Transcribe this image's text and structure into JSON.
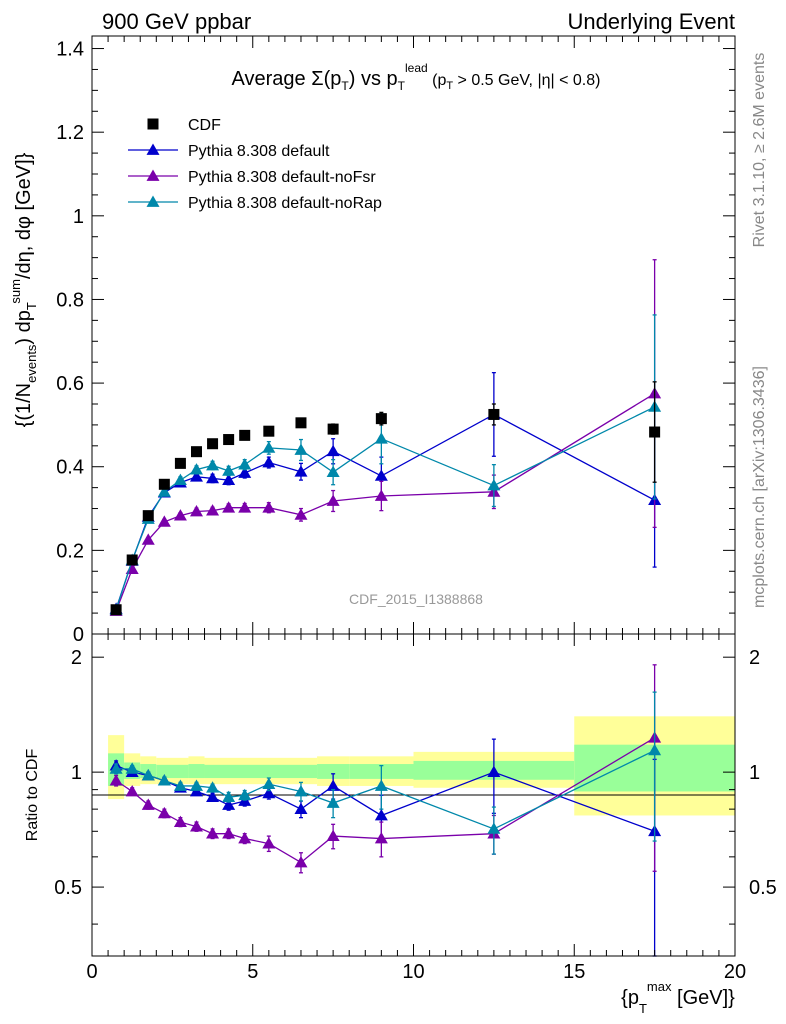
{
  "header": {
    "left": "900 GeV ppbar",
    "right": "Underlying Event"
  },
  "side_labels": {
    "rivet": "Rivet 3.1.10, ≥ 2.6M events",
    "mcplots": "mcplots.cern.ch [arXiv:1306.3436]"
  },
  "watermark": "CDF_2015_I1388868",
  "legend": {
    "items": [
      {
        "label": "CDF",
        "color": "#000000",
        "marker": "square"
      },
      {
        "label": "Pythia 8.308 default",
        "color": "#0000cc",
        "marker": "triangle"
      },
      {
        "label": "Pythia 8.308 default-noFsr",
        "color": "#7a00aa",
        "marker": "triangle"
      },
      {
        "label": "Pythia 8.308 default-noRap",
        "color": "#0088aa",
        "marker": "triangle"
      }
    ]
  },
  "colors": {
    "band_outer": "#ffff99",
    "band_inner": "#99ff99"
  },
  "chart_data": [
    {
      "type": "line",
      "title": "Average Σ(p_T) vs p_T^lead (p_T > 0.5 GeV, |η| < 0.8)",
      "ylabel": "{(1/N_events) dp_T^sum/dη, dφ [GeV]}",
      "xlim": [
        0,
        20
      ],
      "ylim": [
        0,
        1.43
      ],
      "yticks": [
        "0",
        "0.2",
        "0.4",
        "0.6",
        "0.8",
        "1",
        "1.2",
        "1.4"
      ],
      "x": [
        0.75,
        1.25,
        1.75,
        2.25,
        2.75,
        3.25,
        3.75,
        4.25,
        4.75,
        5.5,
        6.5,
        7.5,
        9.0,
        12.5,
        17.5
      ],
      "series": [
        {
          "name": "CDF",
          "values": [
            0.058,
            0.177,
            0.283,
            0.358,
            0.408,
            0.436,
            0.455,
            0.465,
            0.475,
            0.485,
            0.505,
            0.49,
            0.515,
            0.525,
            0.483
          ],
          "errors": [
            0.003,
            0.005,
            0.006,
            0.006,
            0.006,
            0.007,
            0.007,
            0.008,
            0.009,
            0.009,
            0.01,
            0.012,
            0.015,
            0.025,
            0.12
          ]
        },
        {
          "name": "Pythia 8.308 default",
          "values": [
            0.06,
            0.175,
            0.28,
            0.338,
            0.362,
            0.376,
            0.372,
            0.368,
            0.385,
            0.41,
            0.388,
            0.437,
            0.378,
            0.525,
            0.32
          ],
          "errors": [
            0.003,
            0.005,
            0.006,
            0.007,
            0.008,
            0.009,
            0.01,
            0.011,
            0.012,
            0.013,
            0.02,
            0.03,
            0.045,
            0.1,
            0.16
          ]
        },
        {
          "name": "Pythia 8.308 default-noFsr",
          "values": [
            0.055,
            0.155,
            0.225,
            0.268,
            0.283,
            0.293,
            0.295,
            0.302,
            0.302,
            0.302,
            0.285,
            0.318,
            0.33,
            0.34,
            0.575
          ],
          "errors": [
            0.003,
            0.004,
            0.005,
            0.006,
            0.007,
            0.008,
            0.008,
            0.009,
            0.01,
            0.012,
            0.015,
            0.025,
            0.035,
            0.04,
            0.32
          ]
        },
        {
          "name": "Pythia 8.308 default-noRap",
          "values": [
            0.058,
            0.177,
            0.275,
            0.34,
            0.368,
            0.393,
            0.403,
            0.39,
            0.405,
            0.445,
            0.44,
            0.387,
            0.467,
            0.355,
            0.543
          ],
          "errors": [
            0.003,
            0.005,
            0.006,
            0.007,
            0.008,
            0.009,
            0.01,
            0.011,
            0.012,
            0.015,
            0.025,
            0.03,
            0.06,
            0.05,
            0.22
          ]
        }
      ]
    },
    {
      "type": "line",
      "ylabel": "Ratio to CDF",
      "xlabel": "{p_T^max [GeV]}",
      "xlim": [
        0,
        20
      ],
      "ylim": [
        0.33,
        2.3
      ],
      "log_y": true,
      "yticks": [
        "0.5",
        "1",
        "2"
      ],
      "xticks": [
        "0",
        "5",
        "10",
        "15",
        "20"
      ],
      "reference": 1.0,
      "bands": [
        {
          "x0": 0.5,
          "x1": 1.0,
          "outer": [
            0.85,
            1.25
          ],
          "inner": [
            0.92,
            1.12
          ]
        },
        {
          "x0": 1.0,
          "x1": 1.5,
          "outer": [
            0.92,
            1.12
          ],
          "inner": [
            0.96,
            1.06
          ]
        },
        {
          "x0": 1.5,
          "x1": 2.0,
          "outer": [
            0.93,
            1.1
          ],
          "inner": [
            0.965,
            1.05
          ]
        },
        {
          "x0": 2.0,
          "x1": 3.0,
          "outer": [
            0.93,
            1.09
          ],
          "inner": [
            0.965,
            1.045
          ]
        },
        {
          "x0": 3.0,
          "x1": 3.5,
          "outer": [
            0.93,
            1.1
          ],
          "inner": [
            0.965,
            1.05
          ]
        },
        {
          "x0": 3.5,
          "x1": 7.0,
          "outer": [
            0.93,
            1.09
          ],
          "inner": [
            0.965,
            1.045
          ]
        },
        {
          "x0": 7.0,
          "x1": 8.0,
          "outer": [
            0.92,
            1.1
          ],
          "inner": [
            0.96,
            1.05
          ]
        },
        {
          "x0": 8.0,
          "x1": 10.0,
          "outer": [
            0.92,
            1.1
          ],
          "inner": [
            0.96,
            1.05
          ]
        },
        {
          "x0": 10.0,
          "x1": 15.0,
          "outer": [
            0.91,
            1.13
          ],
          "inner": [
            0.955,
            1.07
          ]
        },
        {
          "x0": 15.0,
          "x1": 20.0,
          "outer": [
            0.77,
            1.4
          ],
          "inner": [
            0.89,
            1.18
          ]
        }
      ],
      "series": [
        {
          "name": "Pythia 8.308 default",
          "values": [
            1.04,
            1.0,
            0.98,
            0.95,
            0.91,
            0.89,
            0.86,
            0.82,
            0.84,
            0.88,
            0.8,
            0.92,
            0.77,
            1.0,
            0.7
          ],
          "errors": [
            0.03,
            0.02,
            0.02,
            0.02,
            0.02,
            0.02,
            0.02,
            0.025,
            0.025,
            0.03,
            0.04,
            0.07,
            0.1,
            0.22,
            0.38
          ]
        },
        {
          "name": "Pythia 8.308 default-noFsr",
          "values": [
            0.95,
            0.89,
            0.82,
            0.78,
            0.74,
            0.72,
            0.69,
            0.69,
            0.67,
            0.65,
            0.58,
            0.68,
            0.67,
            0.69,
            1.23
          ],
          "errors": [
            0.03,
            0.02,
            0.02,
            0.02,
            0.02,
            0.02,
            0.02,
            0.02,
            0.02,
            0.03,
            0.035,
            0.05,
            0.07,
            0.08,
            0.68
          ]
        },
        {
          "name": "Pythia 8.308 default-noRap",
          "values": [
            1.02,
            1.02,
            0.98,
            0.95,
            0.92,
            0.92,
            0.91,
            0.86,
            0.87,
            0.93,
            0.89,
            0.83,
            0.92,
            0.71,
            1.14
          ],
          "errors": [
            0.03,
            0.02,
            0.02,
            0.02,
            0.02,
            0.02,
            0.02,
            0.025,
            0.025,
            0.035,
            0.05,
            0.07,
            0.12,
            0.1,
            0.48
          ]
        }
      ]
    }
  ]
}
